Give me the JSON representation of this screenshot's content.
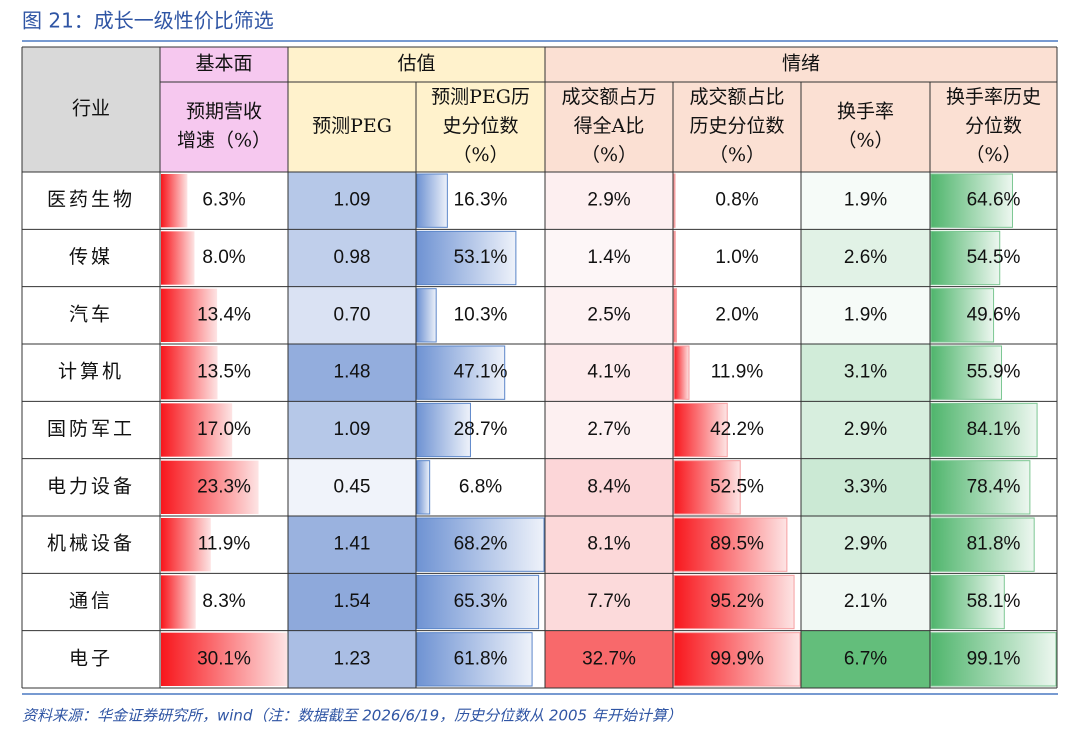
{
  "title": "图 21：成长一级性价比筛选",
  "table": {
    "groups": [
      "基本面",
      "估值",
      "情绪"
    ],
    "columns": [
      [
        "行业"
      ],
      [
        "预期营收",
        "增速（%）"
      ],
      [
        "预测PEG"
      ],
      [
        "预测PEG历",
        "史分位数",
        "（%）"
      ],
      [
        "成交额占万",
        "得全A比",
        "（%）"
      ],
      [
        "成交额占比",
        "历史分位数",
        "（%）"
      ],
      [
        "换手率",
        "（%）"
      ],
      [
        "换手率历史",
        "分位数",
        "（%）"
      ]
    ],
    "rows": [
      [
        "医药生物",
        "6.3%",
        "1.09",
        "16.3%",
        "2.9%",
        "0.8%",
        "1.9%",
        "64.6%"
      ],
      [
        "传媒",
        "8.0%",
        "0.98",
        "53.1%",
        "1.4%",
        "1.0%",
        "2.6%",
        "54.5%"
      ],
      [
        "汽车",
        "13.4%",
        "0.70",
        "10.3%",
        "2.5%",
        "2.0%",
        "1.9%",
        "49.6%"
      ],
      [
        "计算机",
        "13.5%",
        "1.48",
        "47.1%",
        "4.1%",
        "11.9%",
        "3.1%",
        "55.9%"
      ],
      [
        "国防军工",
        "17.0%",
        "1.09",
        "28.7%",
        "2.7%",
        "42.2%",
        "2.9%",
        "84.1%"
      ],
      [
        "电力设备",
        "23.3%",
        "0.45",
        "6.8%",
        "8.4%",
        "52.5%",
        "3.3%",
        "78.4%"
      ],
      [
        "机械设备",
        "11.9%",
        "1.41",
        "68.2%",
        "8.1%",
        "89.5%",
        "2.9%",
        "81.8%"
      ],
      [
        "通信",
        "8.3%",
        "1.54",
        "65.3%",
        "7.7%",
        "95.2%",
        "2.1%",
        "58.1%"
      ],
      [
        "电子",
        "30.1%",
        "1.23",
        "61.8%",
        "32.7%",
        "99.9%",
        "6.7%",
        "99.1%"
      ]
    ]
  },
  "source": "资料来源：华金证券研究所，wind（注：数据截至 2026/6/19，历史分位数从 2005 年开始计算）"
}
